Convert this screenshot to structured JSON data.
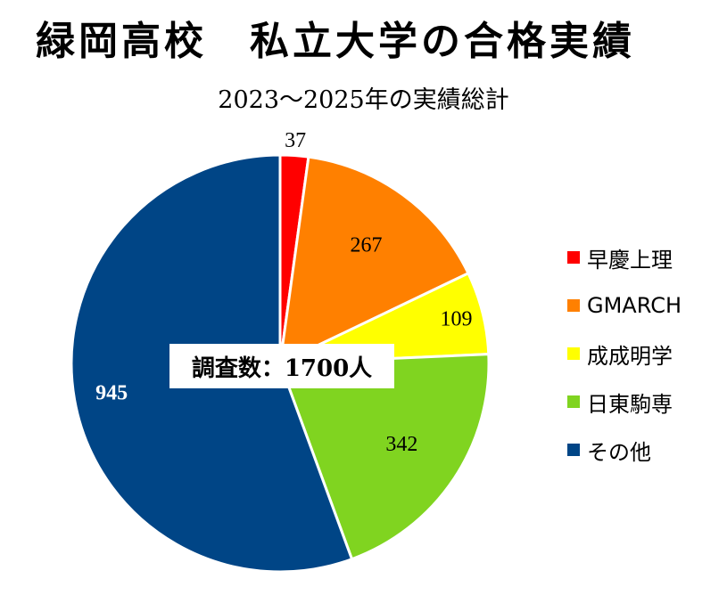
{
  "chart_data": {
    "type": "pie",
    "title": "緑岡高校　私立大学の合格実績",
    "subtitle": "2023～2025年の実績総計",
    "center_note": "調査数：1700人",
    "legend_position": "right",
    "start_angle_deg": 0,
    "direction": "clockwise",
    "slices": [
      {
        "label": "早慶上理",
        "value": 37,
        "color": "#ff0000",
        "label_color": "#000000"
      },
      {
        "label": "GMARCH",
        "value": 267,
        "color": "#ff8000",
        "label_color": "#000000"
      },
      {
        "label": "成成明学",
        "value": 109,
        "color": "#ffff00",
        "label_color": "#000000"
      },
      {
        "label": "日東駒専",
        "value": 342,
        "color": "#80d420",
        "label_color": "#000000"
      },
      {
        "label": "その他",
        "value": 945,
        "color": "#004586",
        "label_color": "#ffffff"
      }
    ],
    "slice_border_color": "#ffffff"
  }
}
